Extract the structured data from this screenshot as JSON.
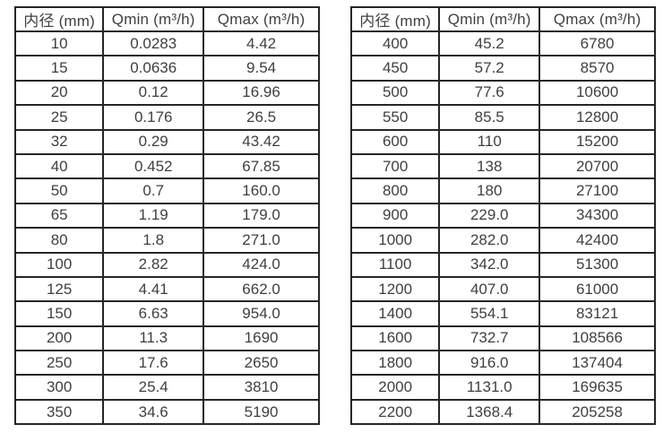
{
  "colors": {
    "table_border": "#262626",
    "table_text": "#3f3f3f",
    "background": "#ffffff"
  },
  "tables": [
    {
      "name": "flow-rates-small-diameters",
      "headers": [
        "内径 (mm)",
        "Qmin (m³/h)",
        "Qmax (m³/h)"
      ],
      "rows": [
        [
          "10",
          "0.0283",
          "4.42"
        ],
        [
          "15",
          "0.0636",
          "9.54"
        ],
        [
          "20",
          "0.12",
          "16.96"
        ],
        [
          "25",
          "0.176",
          "26.5"
        ],
        [
          "32",
          "0.29",
          "43.42"
        ],
        [
          "40",
          "0.452",
          "67.85"
        ],
        [
          "50",
          "0.7",
          "160.0"
        ],
        [
          "65",
          "1.19",
          "179.0"
        ],
        [
          "80",
          "1.8",
          "271.0"
        ],
        [
          "100",
          "2.82",
          "424.0"
        ],
        [
          "125",
          "4.41",
          "662.0"
        ],
        [
          "150",
          "6.63",
          "954.0"
        ],
        [
          "200",
          "11.3",
          "1690"
        ],
        [
          "250",
          "17.6",
          "2650"
        ],
        [
          "300",
          "25.4",
          "3810"
        ],
        [
          "350",
          "34.6",
          "5190"
        ]
      ]
    },
    {
      "name": "flow-rates-large-diameters",
      "headers": [
        "内径 (mm)",
        "Qmin (m³/h)",
        "Qmax (m³/h)"
      ],
      "rows": [
        [
          "400",
          "45.2",
          "6780"
        ],
        [
          "450",
          "57.2",
          "8570"
        ],
        [
          "500",
          "77.6",
          "10600"
        ],
        [
          "550",
          "85.5",
          "12800"
        ],
        [
          "600",
          "110",
          "15200"
        ],
        [
          "700",
          "138",
          "20700"
        ],
        [
          "800",
          "180",
          "27100"
        ],
        [
          "900",
          "229.0",
          "34300"
        ],
        [
          "1000",
          "282.0",
          "42400"
        ],
        [
          "1100",
          "342.0",
          "51300"
        ],
        [
          "1200",
          "407.0",
          "61000"
        ],
        [
          "1400",
          "554.1",
          "83121"
        ],
        [
          "1600",
          "732.7",
          "108566"
        ],
        [
          "1800",
          "916.0",
          "137404"
        ],
        [
          "2000",
          "1131.0",
          "169635"
        ],
        [
          "2200",
          "1368.4",
          "205258"
        ]
      ]
    }
  ]
}
